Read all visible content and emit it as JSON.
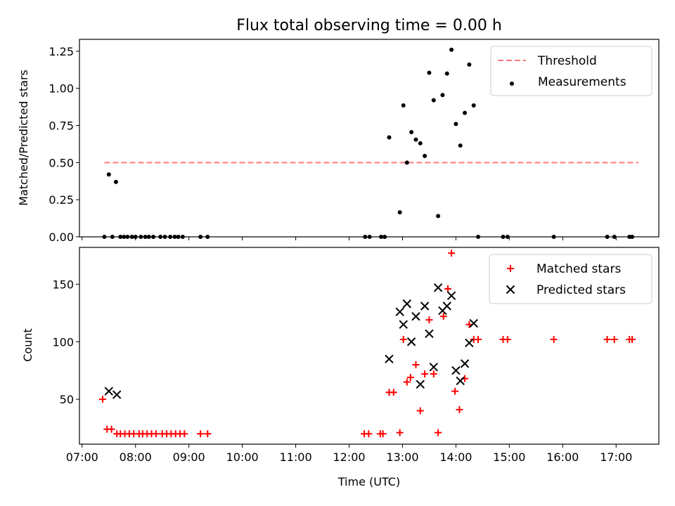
{
  "chart_data": [
    {
      "type": "scatter",
      "title": "Flux total observing time = 0.00 h",
      "xlabel": "",
      "ylabel": "Matched/Predicted stars",
      "xlim": [
        "06:57",
        "17:48"
      ],
      "ylim": [
        0,
        1.33
      ],
      "yticks": [
        "0.00",
        "0.25",
        "0.50",
        "0.75",
        "1.00",
        "1.25"
      ],
      "legend_position": "upper right",
      "threshold": {
        "name": "Threshold",
        "value": 0.5,
        "x_start": "07:25",
        "x_end": "17:25",
        "color": "#ff7b7b"
      },
      "series": [
        {
          "name": "Measurements",
          "color": "#000000",
          "points": [
            [
              "07:25",
              0
            ],
            [
              "07:30",
              0.42
            ],
            [
              "07:34",
              0
            ],
            [
              "07:38",
              0.37
            ],
            [
              "07:43",
              0
            ],
            [
              "07:47",
              0
            ],
            [
              "07:51",
              0
            ],
            [
              "07:56",
              0
            ],
            [
              "08:00",
              0
            ],
            [
              "08:06",
              0
            ],
            [
              "08:11",
              0
            ],
            [
              "08:15",
              0
            ],
            [
              "08:20",
              0
            ],
            [
              "08:28",
              0
            ],
            [
              "08:33",
              0
            ],
            [
              "08:39",
              0
            ],
            [
              "08:44",
              0
            ],
            [
              "08:48",
              0
            ],
            [
              "08:53",
              0
            ],
            [
              "09:13",
              0
            ],
            [
              "09:21",
              0
            ],
            [
              "12:18",
              0
            ],
            [
              "12:23",
              0
            ],
            [
              "12:36",
              0
            ],
            [
              "12:40",
              0
            ],
            [
              "12:45",
              0.67
            ],
            [
              "12:57",
              0.165
            ],
            [
              "13:01",
              0.885
            ],
            [
              "13:05",
              0.5
            ],
            [
              "13:10",
              0.705
            ],
            [
              "13:15",
              0.655
            ],
            [
              "13:20",
              0.63
            ],
            [
              "13:25",
              0.545
            ],
            [
              "13:30",
              1.105
            ],
            [
              "13:35",
              0.92
            ],
            [
              "13:40",
              0.14
            ],
            [
              "13:45",
              0.955
            ],
            [
              "13:50",
              1.1
            ],
            [
              "13:55",
              1.26
            ],
            [
              "14:00",
              0.76
            ],
            [
              "14:05",
              0.615
            ],
            [
              "14:10",
              0.835
            ],
            [
              "14:15",
              1.16
            ],
            [
              "14:20",
              0.885
            ],
            [
              "14:25",
              0
            ],
            [
              "14:53",
              0
            ],
            [
              "14:58",
              0
            ],
            [
              "15:50",
              0
            ],
            [
              "16:50",
              0
            ],
            [
              "16:58",
              0
            ],
            [
              "17:15",
              0
            ],
            [
              "17:18",
              0
            ]
          ]
        }
      ]
    },
    {
      "type": "scatter",
      "title": "",
      "xlabel": "Time (UTC)",
      "ylabel": "Count",
      "xlim": [
        "06:57",
        "17:48"
      ],
      "ylim": [
        11,
        182
      ],
      "yticks": [
        "50",
        "100",
        "150"
      ],
      "xticks": [
        "07:00",
        "08:00",
        "09:00",
        "10:00",
        "11:00",
        "12:00",
        "13:00",
        "14:00",
        "15:00",
        "16:00",
        "17:00"
      ],
      "legend_position": "upper right",
      "series": [
        {
          "name": "Matched stars",
          "marker": "plus",
          "color": "#ff0000",
          "points": [
            [
              "07:23",
              50
            ],
            [
              "07:28",
              24
            ],
            [
              "07:33",
              24
            ],
            [
              "07:39",
              20
            ],
            [
              "07:43",
              20
            ],
            [
              "07:48",
              20
            ],
            [
              "07:53",
              20
            ],
            [
              "07:58",
              20
            ],
            [
              "08:04",
              20
            ],
            [
              "08:08",
              20
            ],
            [
              "08:13",
              20
            ],
            [
              "08:18",
              20
            ],
            [
              "08:23",
              20
            ],
            [
              "08:30",
              20
            ],
            [
              "08:35",
              20
            ],
            [
              "08:40",
              20
            ],
            [
              "08:45",
              20
            ],
            [
              "08:50",
              20
            ],
            [
              "08:55",
              20
            ],
            [
              "09:13",
              20
            ],
            [
              "09:21",
              20
            ],
            [
              "12:17",
              20
            ],
            [
              "12:22",
              20
            ],
            [
              "12:35",
              20
            ],
            [
              "12:38",
              20
            ],
            [
              "12:45",
              56
            ],
            [
              "12:50",
              56
            ],
            [
              "12:57",
              21
            ],
            [
              "13:01",
              102
            ],
            [
              "13:05",
              65
            ],
            [
              "13:09",
              69
            ],
            [
              "13:15",
              80
            ],
            [
              "13:20",
              40
            ],
            [
              "13:25",
              72
            ],
            [
              "13:30",
              119
            ],
            [
              "13:35",
              72
            ],
            [
              "13:40",
              21
            ],
            [
              "13:46",
              122
            ],
            [
              "13:51",
              146
            ],
            [
              "13:55",
              177
            ],
            [
              "13:59",
              57
            ],
            [
              "14:04",
              41
            ],
            [
              "14:10",
              68
            ],
            [
              "14:15",
              115
            ],
            [
              "14:20",
              102
            ],
            [
              "14:25",
              102
            ],
            [
              "14:53",
              102
            ],
            [
              "14:58",
              102
            ],
            [
              "15:50",
              102
            ],
            [
              "16:50",
              102
            ],
            [
              "16:58",
              102
            ],
            [
              "17:15",
              102
            ],
            [
              "17:18",
              102
            ]
          ]
        },
        {
          "name": "Predicted stars",
          "marker": "x",
          "color": "#000000",
          "points": [
            [
              "07:30",
              57
            ],
            [
              "07:39",
              54
            ],
            [
              "12:45",
              85
            ],
            [
              "12:57",
              126
            ],
            [
              "13:01",
              115
            ],
            [
              "13:05",
              133
            ],
            [
              "13:10",
              100
            ],
            [
              "13:15",
              122
            ],
            [
              "13:20",
              63
            ],
            [
              "13:25",
              131
            ],
            [
              "13:30",
              107
            ],
            [
              "13:35",
              78
            ],
            [
              "13:40",
              147
            ],
            [
              "13:45",
              127
            ],
            [
              "13:50",
              131
            ],
            [
              "13:55",
              140
            ],
            [
              "14:00",
              75
            ],
            [
              "14:05",
              66
            ],
            [
              "14:10",
              81
            ],
            [
              "14:15",
              99
            ],
            [
              "14:20",
              116
            ]
          ]
        }
      ]
    }
  ]
}
